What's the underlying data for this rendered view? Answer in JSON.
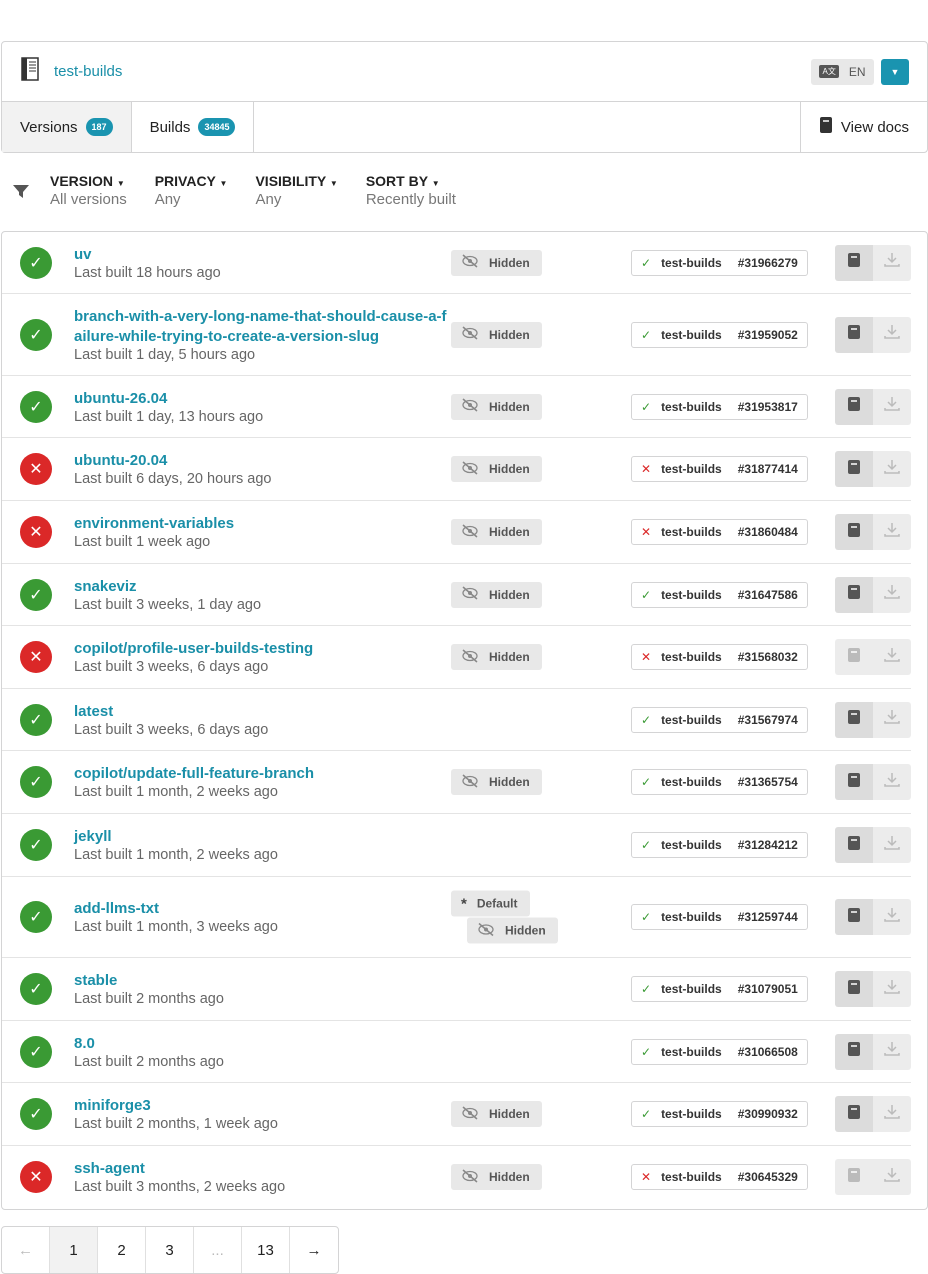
{
  "header": {
    "project": "test-builds",
    "language": "EN"
  },
  "tabs": [
    {
      "label": "Versions",
      "count": "187"
    },
    {
      "label": "Builds",
      "count": "34845"
    }
  ],
  "view_docs": "View docs",
  "filters": [
    {
      "label": "Version",
      "value": "All versions"
    },
    {
      "label": "Privacy",
      "value": "Any"
    },
    {
      "label": "Visibility",
      "value": "Any"
    },
    {
      "label": "Sort by",
      "value": "Recently built"
    }
  ],
  "versions": [
    {
      "name": "uv",
      "built": "Last built 18 hours ago",
      "status": "success",
      "tags": [
        "Hidden"
      ],
      "project": "test-builds",
      "build": "#31966279",
      "docs_enabled": true
    },
    {
      "name": "branch-with-a-very-long-name-that-should-cause-a-failure-while-trying-to-create-a-version-slug",
      "built": "Last built 1 day, 5 hours ago",
      "status": "success",
      "tags": [
        "Hidden"
      ],
      "project": "test-builds",
      "build": "#31959052",
      "docs_enabled": true
    },
    {
      "name": "ubuntu-26.04",
      "built": "Last built 1 day, 13 hours ago",
      "status": "success",
      "tags": [
        "Hidden"
      ],
      "project": "test-builds",
      "build": "#31953817",
      "docs_enabled": true
    },
    {
      "name": "ubuntu-20.04",
      "built": "Last built 6 days, 20 hours ago",
      "status": "failed",
      "tags": [
        "Hidden"
      ],
      "project": "test-builds",
      "build": "#31877414",
      "docs_enabled": true
    },
    {
      "name": "environment-variables",
      "built": "Last built 1 week ago",
      "status": "failed",
      "tags": [
        "Hidden"
      ],
      "project": "test-builds",
      "build": "#31860484",
      "docs_enabled": true
    },
    {
      "name": "snakeviz",
      "built": "Last built 3 weeks, 1 day ago",
      "status": "success",
      "tags": [
        "Hidden"
      ],
      "project": "test-builds",
      "build": "#31647586",
      "docs_enabled": true
    },
    {
      "name": "copilot/profile-user-builds-testing",
      "built": "Last built 3 weeks, 6 days ago",
      "status": "failed",
      "tags": [
        "Hidden"
      ],
      "project": "test-builds",
      "build": "#31568032",
      "docs_enabled": false
    },
    {
      "name": "latest",
      "built": "Last built 3 weeks, 6 days ago",
      "status": "success",
      "tags": [],
      "project": "test-builds",
      "build": "#31567974",
      "docs_enabled": true
    },
    {
      "name": "copilot/update-full-feature-branch",
      "built": "Last built 1 month, 2 weeks ago",
      "status": "success",
      "tags": [
        "Hidden"
      ],
      "project": "test-builds",
      "build": "#31365754",
      "docs_enabled": true
    },
    {
      "name": "jekyll",
      "built": "Last built 1 month, 2 weeks ago",
      "status": "success",
      "tags": [],
      "project": "test-builds",
      "build": "#31284212",
      "docs_enabled": true
    },
    {
      "name": "add-llms-txt",
      "built": "Last built 1 month, 3 weeks ago",
      "status": "success",
      "tags": [
        "Default",
        "Hidden"
      ],
      "project": "test-builds",
      "build": "#31259744",
      "docs_enabled": true
    },
    {
      "name": "stable",
      "built": "Last built 2 months ago",
      "status": "success",
      "tags": [],
      "project": "test-builds",
      "build": "#31079051",
      "docs_enabled": true
    },
    {
      "name": "8.0",
      "built": "Last built 2 months ago",
      "status": "success",
      "tags": [],
      "project": "test-builds",
      "build": "#31066508",
      "docs_enabled": true
    },
    {
      "name": "miniforge3",
      "built": "Last built 2 months, 1 week ago",
      "status": "success",
      "tags": [
        "Hidden"
      ],
      "project": "test-builds",
      "build": "#30990932",
      "docs_enabled": true
    },
    {
      "name": "ssh-agent",
      "built": "Last built 3 months, 2 weeks ago",
      "status": "failed",
      "tags": [
        "Hidden"
      ],
      "project": "test-builds",
      "build": "#30645329",
      "docs_enabled": false
    }
  ],
  "pagination": {
    "pages": [
      "1",
      "2",
      "3",
      "...",
      "13"
    ],
    "current": "1"
  },
  "colors": {
    "accent": "#1a94b0",
    "success": "#3a9a34",
    "failure": "#db2828"
  }
}
